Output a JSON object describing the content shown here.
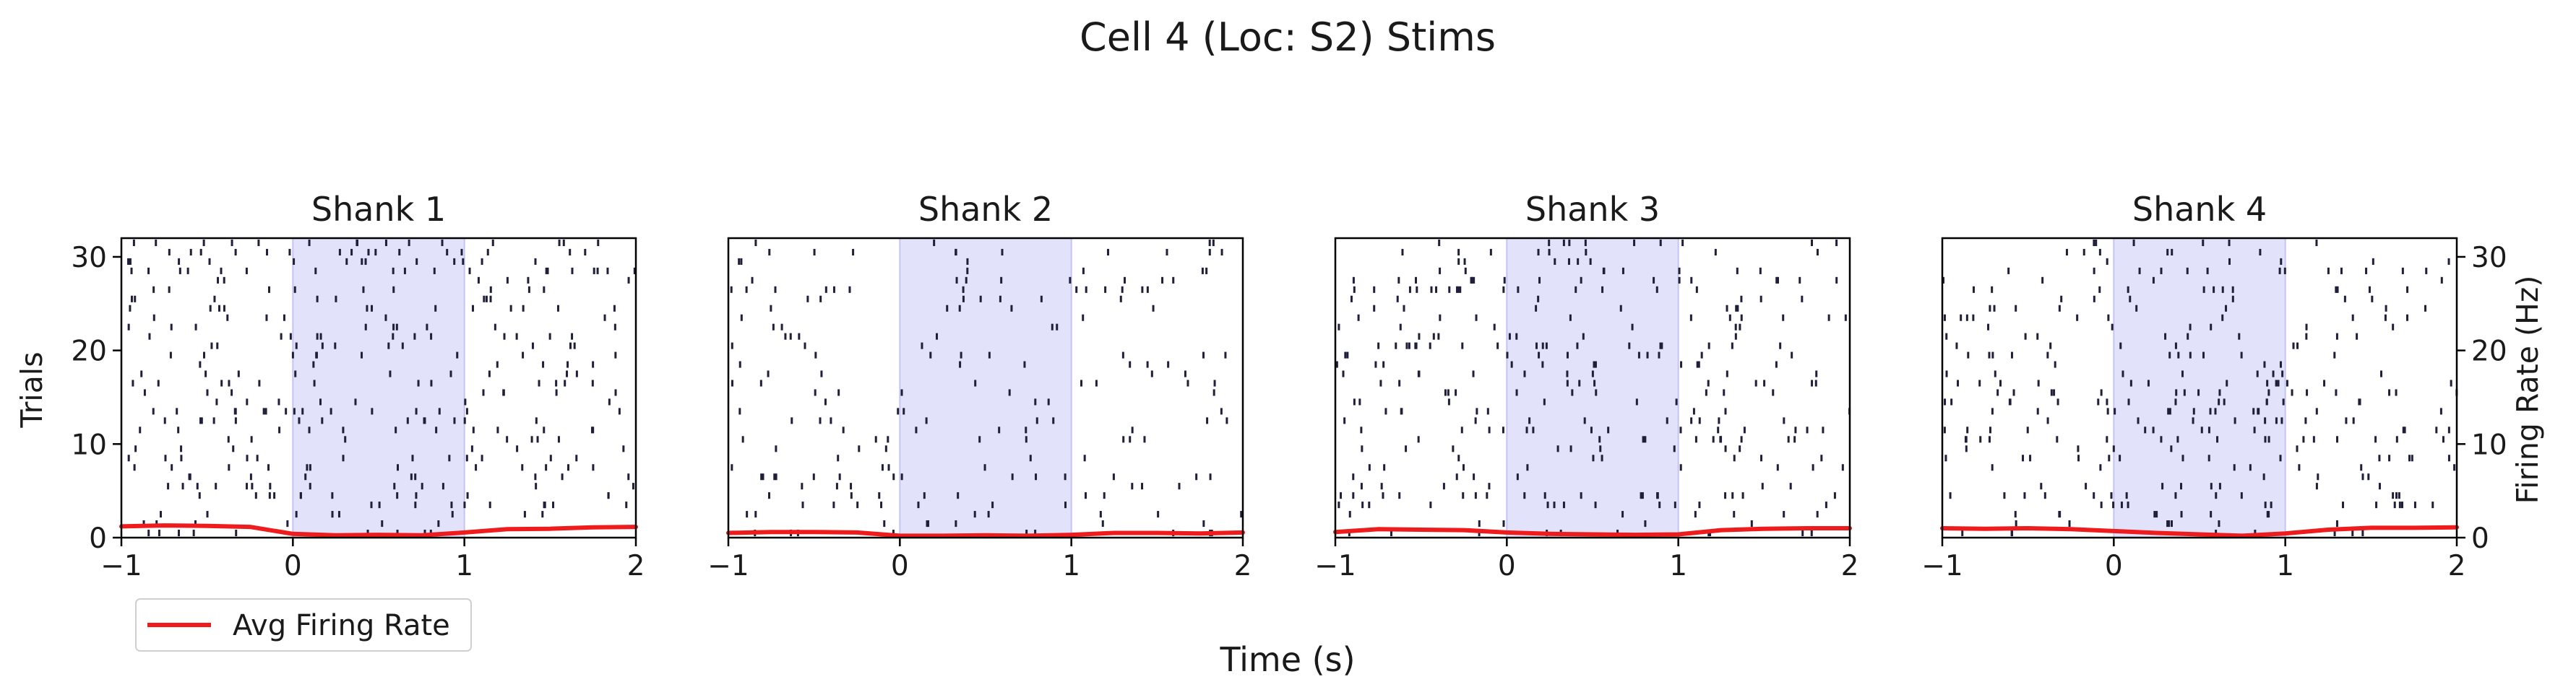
{
  "figure": {
    "title": "Cell 4 (Loc: S2) Stims",
    "xlabel": "Time (s)",
    "ylabel_left": "Trials",
    "ylabel_right": "Firing Rate (Hz)",
    "legend": {
      "label": "Avg Firing Rate",
      "placement": "lower-left"
    }
  },
  "colors": {
    "spike": "#1f1f3a",
    "stim_shade": "#e2e2fb",
    "stim_edge": "#c4c4f2",
    "rate_line": "#ee1c1c",
    "axis": "#000000"
  },
  "chart_data": [
    {
      "type": "raster",
      "title": "Shank 1",
      "xlim": [
        -1,
        2
      ],
      "ylim": [
        0,
        32
      ],
      "xticks": [
        "−1",
        "0",
        "1",
        "2"
      ],
      "yticks": [
        "0",
        "10",
        "20",
        "30"
      ],
      "stim_window": [
        0,
        1
      ],
      "n_trials": 32,
      "spike_count": 330,
      "rate_series": {
        "name": "Avg Firing Rate",
        "x": [
          -1,
          -0.75,
          -0.5,
          -0.25,
          0,
          0.25,
          0.5,
          0.75,
          1,
          1.25,
          1.5,
          1.75,
          2
        ],
        "y": [
          1.2,
          1.3,
          1.25,
          1.15,
          0.4,
          0.25,
          0.3,
          0.25,
          0.55,
          0.9,
          0.95,
          1.1,
          1.15
        ]
      }
    },
    {
      "type": "raster",
      "title": "Shank 2",
      "xlim": [
        -1,
        2
      ],
      "ylim": [
        0,
        32
      ],
      "xticks": [
        "−1",
        "0",
        "1",
        "2"
      ],
      "yticks": [],
      "stim_window": [
        0,
        1
      ],
      "n_trials": 32,
      "spike_count": 190,
      "rate_series": {
        "name": "Avg Firing Rate",
        "x": [
          -1,
          -0.75,
          -0.5,
          -0.25,
          0,
          0.25,
          0.5,
          0.75,
          1,
          1.25,
          1.5,
          1.75,
          2
        ],
        "y": [
          0.5,
          0.6,
          0.6,
          0.55,
          0.2,
          0.2,
          0.25,
          0.2,
          0.3,
          0.5,
          0.5,
          0.45,
          0.55
        ]
      }
    },
    {
      "type": "raster",
      "title": "Shank 3",
      "xlim": [
        -1,
        2
      ],
      "ylim": [
        0,
        32
      ],
      "xticks": [
        "−1",
        "0",
        "1",
        "2"
      ],
      "yticks": [],
      "stim_window": [
        0,
        1
      ],
      "n_trials": 32,
      "spike_count": 300,
      "rate_series": {
        "name": "Avg Firing Rate",
        "x": [
          -1,
          -0.75,
          -0.5,
          -0.25,
          0,
          0.25,
          0.5,
          0.75,
          1,
          1.25,
          1.5,
          1.75,
          2
        ],
        "y": [
          0.6,
          0.9,
          0.85,
          0.8,
          0.55,
          0.4,
          0.35,
          0.3,
          0.35,
          0.8,
          0.95,
          1.0,
          1.0
        ]
      }
    },
    {
      "type": "raster",
      "title": "Shank 4",
      "xlim": [
        -1,
        2
      ],
      "ylim": [
        0,
        32
      ],
      "xticks": [
        "−1",
        "0",
        "1",
        "2"
      ],
      "yticks": [
        "0",
        "10",
        "20",
        "30"
      ],
      "stim_window": [
        0,
        1
      ],
      "n_trials": 32,
      "spike_count": 300,
      "rate_series": {
        "name": "Avg Firing Rate",
        "x": [
          -1,
          -0.75,
          -0.5,
          -0.25,
          0,
          0.25,
          0.5,
          0.75,
          1,
          1.25,
          1.5,
          1.75,
          2
        ],
        "y": [
          1.0,
          0.95,
          1.0,
          0.9,
          0.7,
          0.5,
          0.35,
          0.2,
          0.45,
          0.85,
          1.05,
          1.05,
          1.1
        ]
      }
    }
  ]
}
